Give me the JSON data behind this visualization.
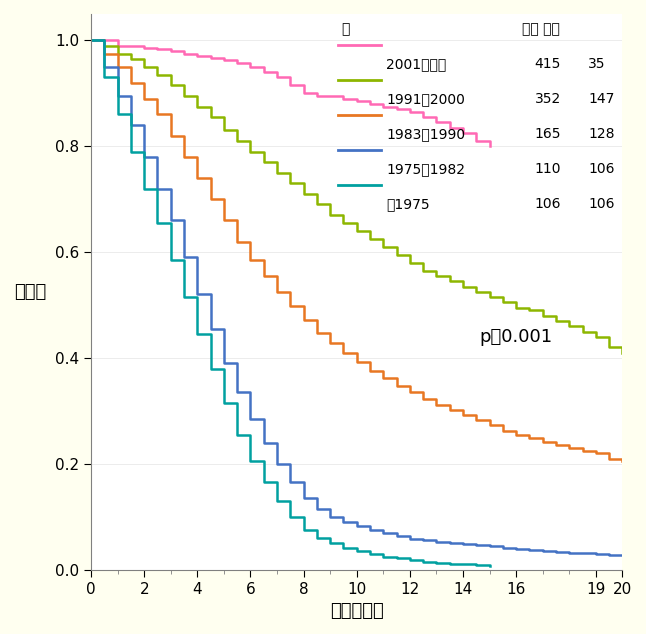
{
  "xlabel": "経過（年）",
  "ylabel": "生存率",
  "background_color": "#FFFFF0",
  "plot_background": "#FFFFFF",
  "xlim": [
    0,
    20
  ],
  "ylim": [
    0.0,
    1.05
  ],
  "yticks": [
    0.0,
    0.2,
    0.4,
    0.6,
    0.8,
    1.0
  ],
  "p_value_text": "p＜0.001",
  "legend_header_left": "年",
  "legend_header_right": "全体 死亡",
  "series": [
    {
      "label": "2001～現在",
      "n_total": 415,
      "n_dead": 35,
      "color": "#FF69B4",
      "x": [
        0,
        0.5,
        1,
        1.5,
        2,
        2.5,
        3,
        3.5,
        4,
        4.5,
        5,
        5.5,
        6,
        6.5,
        7,
        7.5,
        8,
        8.5,
        9,
        9.5,
        10,
        10.5,
        11,
        11.5,
        12,
        12.5,
        13,
        13.5,
        14,
        14.5,
        15
      ],
      "y": [
        1.0,
        1.0,
        0.99,
        0.99,
        0.985,
        0.983,
        0.98,
        0.975,
        0.97,
        0.967,
        0.963,
        0.958,
        0.95,
        0.94,
        0.93,
        0.915,
        0.9,
        0.895,
        0.895,
        0.89,
        0.885,
        0.88,
        0.875,
        0.87,
        0.865,
        0.855,
        0.845,
        0.835,
        0.825,
        0.81,
        0.8
      ]
    },
    {
      "label": "1991～2000",
      "n_total": 352,
      "n_dead": 147,
      "color": "#8DB600",
      "x": [
        0,
        0.5,
        1,
        1.5,
        2,
        2.5,
        3,
        3.5,
        4,
        4.5,
        5,
        5.5,
        6,
        6.5,
        7,
        7.5,
        8,
        8.5,
        9,
        9.5,
        10,
        10.5,
        11,
        11.5,
        12,
        12.5,
        13,
        13.5,
        14,
        14.5,
        15,
        15.5,
        16,
        16.5,
        17,
        17.5,
        18,
        18.5,
        19,
        19.5,
        20
      ],
      "y": [
        1.0,
        0.99,
        0.975,
        0.965,
        0.95,
        0.935,
        0.915,
        0.895,
        0.875,
        0.855,
        0.83,
        0.81,
        0.79,
        0.77,
        0.75,
        0.73,
        0.71,
        0.69,
        0.67,
        0.655,
        0.64,
        0.625,
        0.61,
        0.595,
        0.58,
        0.565,
        0.555,
        0.545,
        0.535,
        0.525,
        0.515,
        0.505,
        0.495,
        0.49,
        0.48,
        0.47,
        0.46,
        0.45,
        0.44,
        0.42,
        0.41
      ]
    },
    {
      "label": "1983～1990",
      "n_total": 165,
      "n_dead": 128,
      "color": "#E87722",
      "x": [
        0,
        0.5,
        1,
        1.5,
        2,
        2.5,
        3,
        3.5,
        4,
        4.5,
        5,
        5.5,
        6,
        6.5,
        7,
        7.5,
        8,
        8.5,
        9,
        9.5,
        10,
        10.5,
        11,
        11.5,
        12,
        12.5,
        13,
        13.5,
        14,
        14.5,
        15,
        15.5,
        16,
        16.5,
        17,
        17.5,
        18,
        18.5,
        19,
        19.5,
        20
      ],
      "y": [
        1.0,
        0.975,
        0.95,
        0.92,
        0.89,
        0.86,
        0.82,
        0.78,
        0.74,
        0.7,
        0.66,
        0.62,
        0.585,
        0.555,
        0.525,
        0.498,
        0.472,
        0.448,
        0.428,
        0.41,
        0.392,
        0.376,
        0.362,
        0.348,
        0.335,
        0.322,
        0.312,
        0.302,
        0.292,
        0.282,
        0.273,
        0.263,
        0.255,
        0.248,
        0.242,
        0.236,
        0.23,
        0.225,
        0.22,
        0.21,
        0.205
      ]
    },
    {
      "label": "1975～1982",
      "n_total": 110,
      "n_dead": 106,
      "color": "#4472C4",
      "x": [
        0,
        0.5,
        1,
        1.5,
        2,
        2.5,
        3,
        3.5,
        4,
        4.5,
        5,
        5.5,
        6,
        6.5,
        7,
        7.5,
        8,
        8.5,
        9,
        9.5,
        10,
        10.5,
        11,
        11.5,
        12,
        12.5,
        13,
        13.5,
        14,
        14.5,
        15,
        15.5,
        16,
        16.5,
        17,
        17.5,
        18,
        18.5,
        19,
        19.5,
        20
      ],
      "y": [
        1.0,
        0.95,
        0.895,
        0.84,
        0.78,
        0.72,
        0.66,
        0.59,
        0.52,
        0.455,
        0.39,
        0.335,
        0.285,
        0.24,
        0.2,
        0.165,
        0.135,
        0.115,
        0.1,
        0.09,
        0.082,
        0.075,
        0.069,
        0.064,
        0.059,
        0.056,
        0.053,
        0.05,
        0.048,
        0.046,
        0.044,
        0.042,
        0.04,
        0.038,
        0.036,
        0.034,
        0.032,
        0.031,
        0.03,
        0.028,
        0.027
      ]
    },
    {
      "label": "＜1975",
      "n_total": 106,
      "n_dead": 106,
      "color": "#00A0A0",
      "x": [
        0,
        0.5,
        1,
        1.5,
        2,
        2.5,
        3,
        3.5,
        4,
        4.5,
        5,
        5.5,
        6,
        6.5,
        7,
        7.5,
        8,
        8.5,
        9,
        9.5,
        10,
        10.5,
        11,
        11.5,
        12,
        12.5,
        13,
        13.5,
        14,
        14.5,
        15
      ],
      "y": [
        1.0,
        0.93,
        0.86,
        0.79,
        0.72,
        0.655,
        0.585,
        0.515,
        0.445,
        0.38,
        0.315,
        0.255,
        0.205,
        0.165,
        0.13,
        0.1,
        0.075,
        0.06,
        0.05,
        0.042,
        0.036,
        0.03,
        0.025,
        0.022,
        0.018,
        0.015,
        0.013,
        0.011,
        0.01,
        0.009,
        0.008
      ]
    }
  ]
}
